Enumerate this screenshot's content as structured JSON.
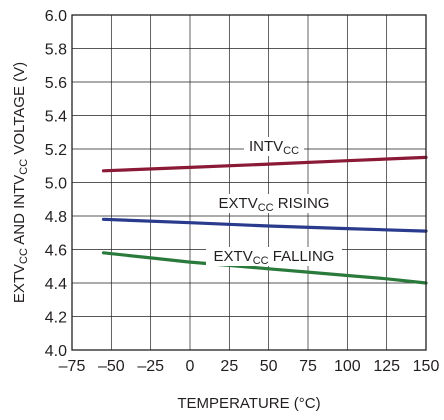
{
  "chart_data": {
    "type": "line",
    "xlabel": "TEMPERATURE (°C)",
    "ylabel": {
      "parts": [
        {
          "text": "EXTV",
          "sub": false
        },
        {
          "text": "CC",
          "sub": true
        },
        {
          "text": " AND INTV",
          "sub": false
        },
        {
          "text": "CC",
          "sub": true
        },
        {
          "text": " VOLTAGE (V)",
          "sub": false
        }
      ]
    },
    "xlim": [
      -75,
      150
    ],
    "ylim": [
      4.0,
      6.0
    ],
    "xticks": [
      "–75",
      "–50",
      "–25",
      "0",
      "25",
      "50",
      "75",
      "100",
      "125",
      "150"
    ],
    "xtick_values": [
      -75,
      -50,
      -25,
      0,
      25,
      50,
      75,
      100,
      125,
      150
    ],
    "yticks": [
      "4.0",
      "4.2",
      "4.4",
      "4.6",
      "4.8",
      "5.0",
      "5.2",
      "5.4",
      "5.6",
      "5.8",
      "6.0"
    ],
    "ytick_values": [
      4.0,
      4.2,
      4.4,
      4.6,
      4.8,
      5.0,
      5.2,
      5.4,
      5.6,
      5.8,
      6.0
    ],
    "grid": true,
    "series": [
      {
        "id": "intvcc",
        "label_parts": [
          {
            "text": "INTV",
            "sub": false
          },
          {
            "text": "CC",
            "sub": true
          }
        ],
        "color": "#8b1a37",
        "x": [
          -55,
          0,
          50,
          100,
          150
        ],
        "y": [
          5.07,
          5.09,
          5.11,
          5.13,
          5.15
        ]
      },
      {
        "id": "extvcc-rising",
        "label_parts": [
          {
            "text": "EXTV",
            "sub": false
          },
          {
            "text": "CC",
            "sub": true
          },
          {
            "text": " RISING",
            "sub": false
          }
        ],
        "color": "#2a3a8c",
        "x": [
          -55,
          0,
          50,
          100,
          150
        ],
        "y": [
          4.78,
          4.76,
          4.74,
          4.725,
          4.71
        ]
      },
      {
        "id": "extvcc-falling",
        "label_parts": [
          {
            "text": "EXTV",
            "sub": false
          },
          {
            "text": "CC",
            "sub": true
          },
          {
            "text": " FALLING",
            "sub": false
          }
        ],
        "color": "#2a7a3c",
        "x": [
          -55,
          -25,
          0,
          25,
          50,
          75,
          100,
          125,
          150
        ],
        "y": [
          4.58,
          4.55,
          4.525,
          4.505,
          4.485,
          4.465,
          4.445,
          4.425,
          4.4
        ]
      }
    ]
  }
}
